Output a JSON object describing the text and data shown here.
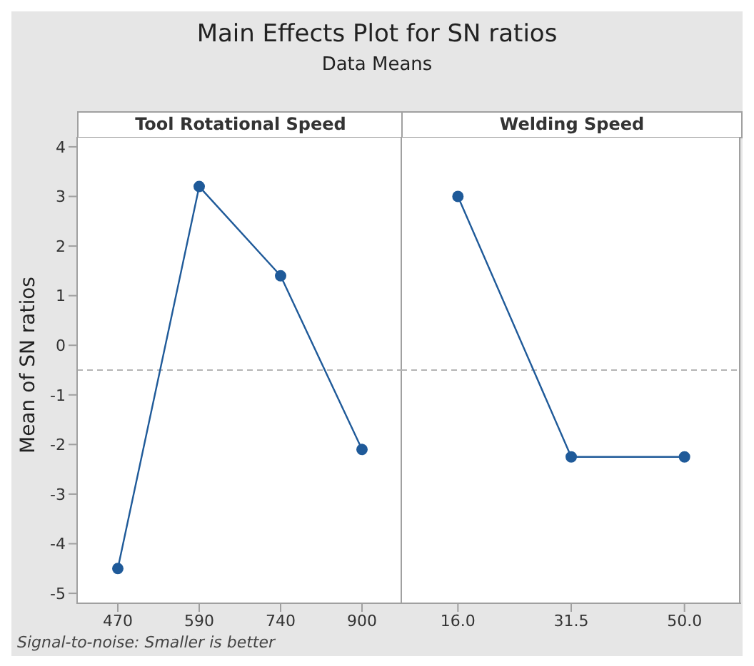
{
  "chart_data": [
    {
      "type": "line",
      "title": "Main Effects Plot for SN ratios",
      "subtitle": "Data Means",
      "xlabel": "Tool Rotational Speed",
      "ylabel": "Mean of SN ratios",
      "categories": [
        "470",
        "590",
        "740",
        "900"
      ],
      "series": [
        {
          "color": "#1f5a99",
          "values": [
            -4.5,
            3.2,
            1.4,
            -2.1
          ]
        }
      ],
      "ylim": [
        -5.2,
        4.2
      ],
      "yticks": [
        -5,
        -4,
        -3,
        -2,
        -1,
        0,
        1,
        2,
        3,
        4
      ],
      "marker": "circle",
      "grid": false,
      "legend": false,
      "ref_lines": [
        {
          "axis": "y",
          "value": -0.5,
          "color": "#b4b4b4",
          "line_style": "dashed"
        }
      ],
      "annotations": [
        "Signal-to-noise: Smaller is better"
      ]
    },
    {
      "type": "line",
      "xlabel": "Welding Speed",
      "categories": [
        "16.0",
        "31.5",
        "50.0"
      ],
      "series": [
        {
          "color": "#1f5a99",
          "values": [
            3.0,
            -2.25,
            -2.25
          ]
        }
      ],
      "ylim": [
        -5.2,
        4.2
      ],
      "yticks": [
        -5,
        -4,
        -3,
        -2,
        -1,
        0,
        1,
        2,
        3,
        4
      ],
      "tick_labels": "x",
      "marker": "circle",
      "grid": false,
      "legend": false,
      "ref_lines": [
        {
          "axis": "y",
          "value": -0.5,
          "color": "#b4b4b4",
          "line_style": "dashed"
        }
      ]
    }
  ]
}
